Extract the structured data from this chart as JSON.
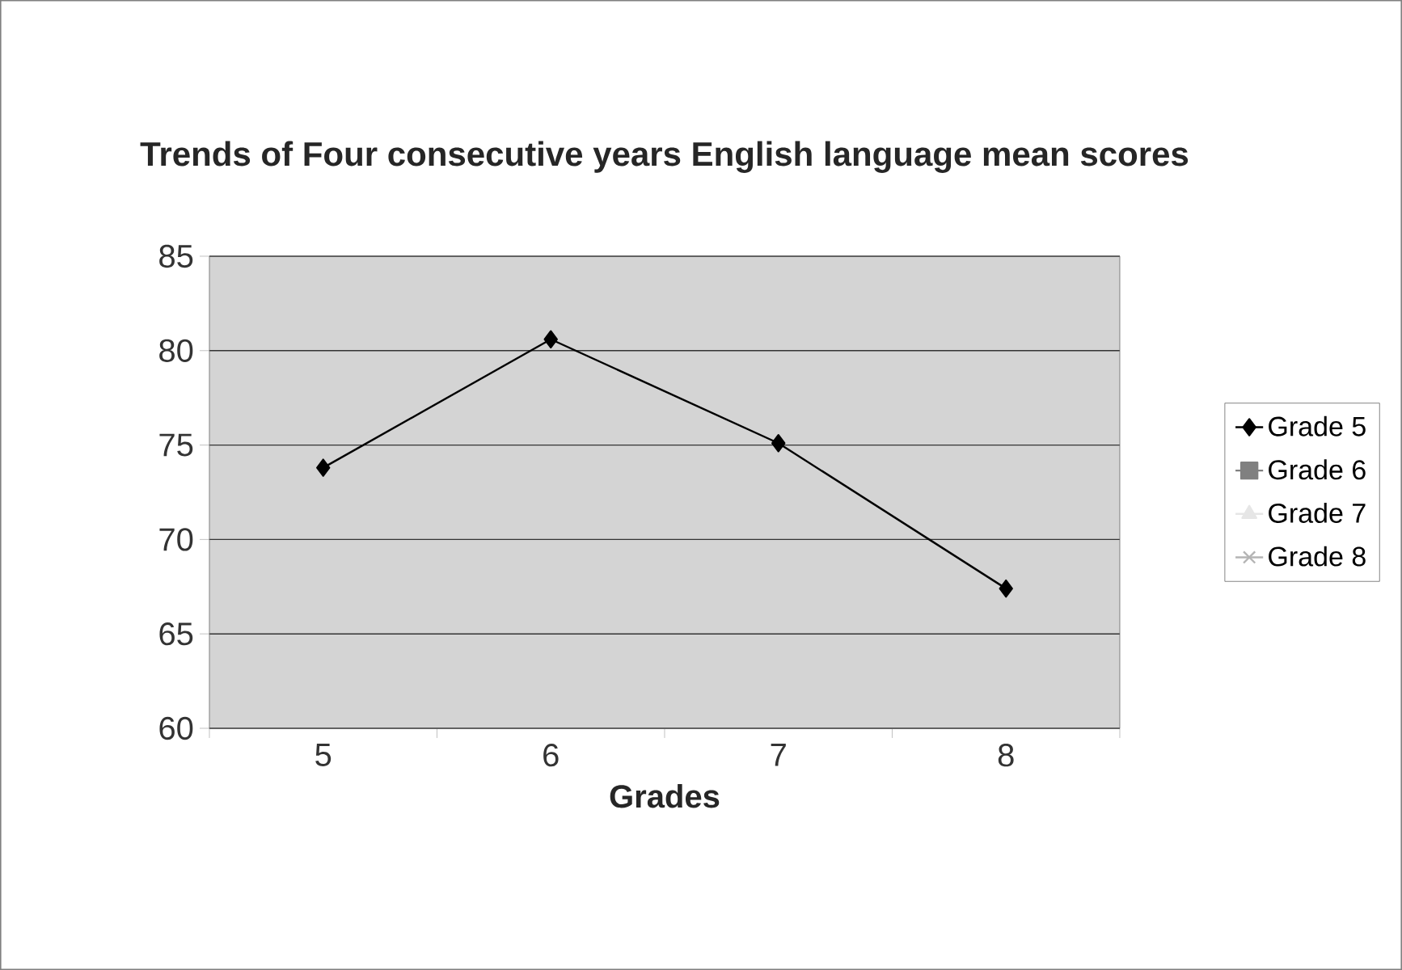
{
  "chart_data": {
    "type": "line",
    "title": "Trends of Four consecutive years English language mean scores",
    "xlabel": "Grades",
    "categories": [
      "5",
      "6",
      "7",
      "8"
    ],
    "series": [
      {
        "name": "Grade 5",
        "color": "#000000",
        "marker": "diamond",
        "values": [
          73.8,
          80.6,
          75.1,
          67.4
        ]
      },
      {
        "name": "Grade 6",
        "color": "#808080",
        "marker": "square",
        "values": [
          null,
          null,
          null,
          null
        ]
      },
      {
        "name": "Grade 7",
        "color": "#e6e6e6",
        "marker": "triangle",
        "values": [
          null,
          null,
          null,
          null
        ]
      },
      {
        "name": "Grade 8",
        "color": "#b4b4b4",
        "marker": "cross",
        "values": [
          null,
          null,
          null,
          null
        ]
      }
    ],
    "ylim": [
      60,
      85
    ],
    "yticks": [
      60,
      65,
      70,
      75,
      80,
      85
    ],
    "grid": "y",
    "legend": "right"
  }
}
